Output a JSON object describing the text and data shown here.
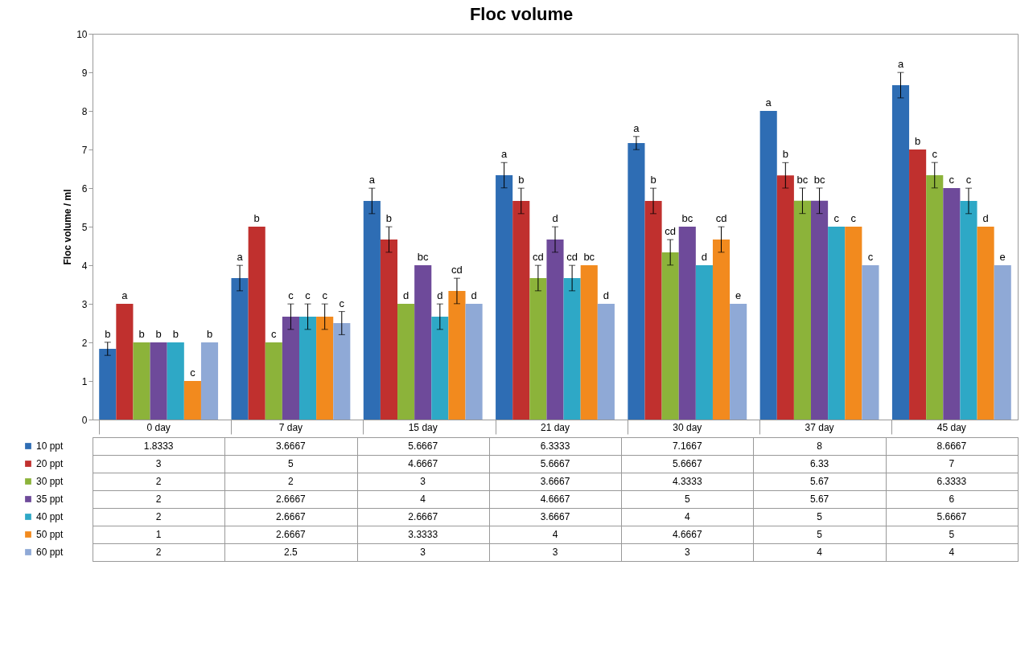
{
  "chart_data": {
    "type": "bar",
    "title": "Floc volume",
    "ylabel": "Floc volume / ml",
    "categories": [
      "0 day",
      "7 day",
      "15 day",
      "21 day",
      "30 day",
      "37 day",
      "45 day"
    ],
    "series": [
      {
        "name": "10 ppt",
        "color": "#2e6db4",
        "values": [
          1.8333,
          3.6667,
          5.6667,
          6.3333,
          7.1667,
          8,
          8.6667
        ],
        "errors": [
          0.17,
          0.33,
          0.33,
          0.33,
          0.17,
          null,
          0.33
        ]
      },
      {
        "name": "20 ppt",
        "color": "#c0302e",
        "values": [
          3,
          5,
          4.6667,
          5.6667,
          5.6667,
          6.33,
          7
        ],
        "errors": [
          null,
          null,
          0.33,
          0.33,
          0.33,
          0.33,
          null
        ]
      },
      {
        "name": "30 ppt",
        "color": "#8cb33a",
        "values": [
          2,
          2,
          3,
          3.6667,
          4.3333,
          5.67,
          6.3333
        ],
        "errors": [
          null,
          null,
          null,
          0.33,
          0.33,
          0.33,
          0.33
        ]
      },
      {
        "name": "35 ppt",
        "color": "#6e4a9a",
        "values": [
          2,
          2.6667,
          4,
          4.6667,
          5,
          5.67,
          6
        ],
        "errors": [
          null,
          0.33,
          null,
          0.33,
          null,
          0.33,
          null
        ]
      },
      {
        "name": "40 ppt",
        "color": "#2ea8c6",
        "values": [
          2,
          2.6667,
          2.6667,
          3.6667,
          4,
          5,
          5.6667
        ],
        "errors": [
          null,
          0.33,
          0.33,
          0.33,
          null,
          null,
          0.33
        ]
      },
      {
        "name": "50 ppt",
        "color": "#f28a1e",
        "values": [
          1,
          2.6667,
          3.3333,
          4,
          4.6667,
          5,
          5
        ],
        "errors": [
          null,
          0.33,
          0.33,
          null,
          0.33,
          null,
          null
        ]
      },
      {
        "name": "60 ppt",
        "color": "#8fa9d6",
        "values": [
          2,
          2.5,
          3,
          3,
          3,
          4,
          4
        ],
        "errors": [
          null,
          0.3,
          null,
          null,
          null,
          null,
          null
        ]
      }
    ],
    "annotations": [
      "b",
      "a",
      "b",
      "b",
      "b",
      "c",
      "b",
      "a",
      "b",
      "c",
      "c",
      "c",
      "c",
      "c",
      "a",
      "b",
      "d",
      "bc",
      "d",
      "cd",
      "d",
      "a",
      "b",
      "cd",
      "d",
      "cd",
      "bc",
      "d",
      "a",
      "b",
      "cd",
      "bc",
      "d",
      "cd",
      "e",
      "a",
      "b",
      "bc",
      "bc",
      "c",
      "c",
      "c",
      "a",
      "b",
      "c",
      "c",
      "c",
      "d",
      "e"
    ],
    "ylim": [
      0,
      10
    ],
    "yticks": [
      0,
      1,
      2,
      3,
      4,
      5,
      6,
      7,
      8,
      9,
      10
    ],
    "grid": false,
    "legend": "bottom",
    "data_labels": true
  }
}
